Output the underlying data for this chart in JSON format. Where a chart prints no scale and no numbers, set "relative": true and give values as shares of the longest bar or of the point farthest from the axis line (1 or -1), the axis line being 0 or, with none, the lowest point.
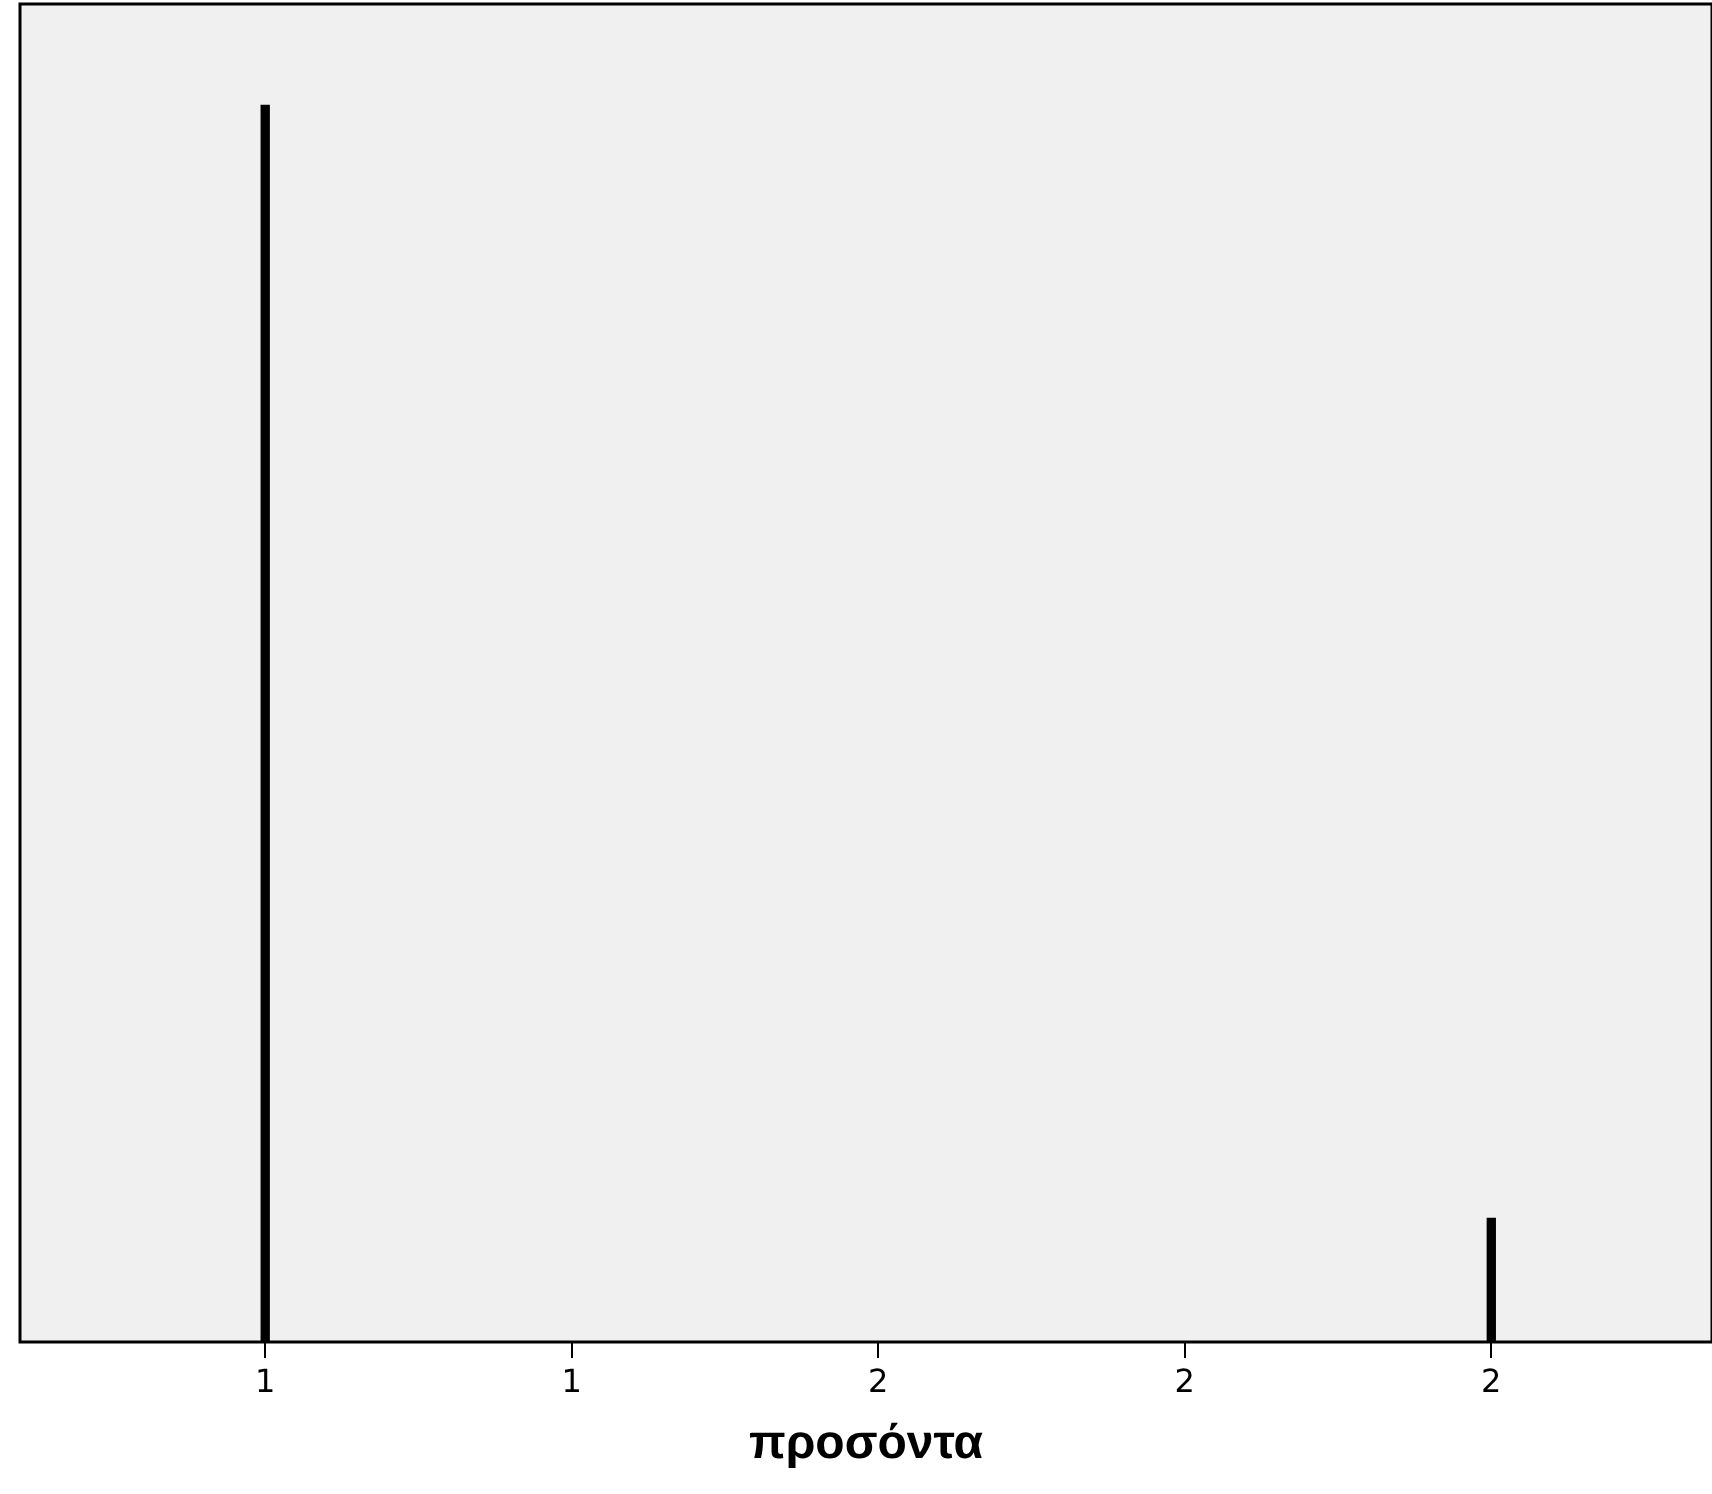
{
  "chart_data": {
    "type": "bar",
    "xlabel": "προσόντα",
    "relative": true,
    "tick_labels": "x",
    "color": "#000000",
    "x": [
      1,
      2
    ],
    "values": [
      1,
      0.1
    ],
    "xlim": [
      0.8,
      2.18
    ],
    "xticks": [
      {
        "value": 1,
        "label": "1"
      },
      {
        "value": 1.25,
        "label": "1"
      },
      {
        "value": 1.5,
        "label": "2"
      },
      {
        "value": 1.75,
        "label": "2"
      },
      {
        "value": 2,
        "label": "2"
      }
    ]
  }
}
